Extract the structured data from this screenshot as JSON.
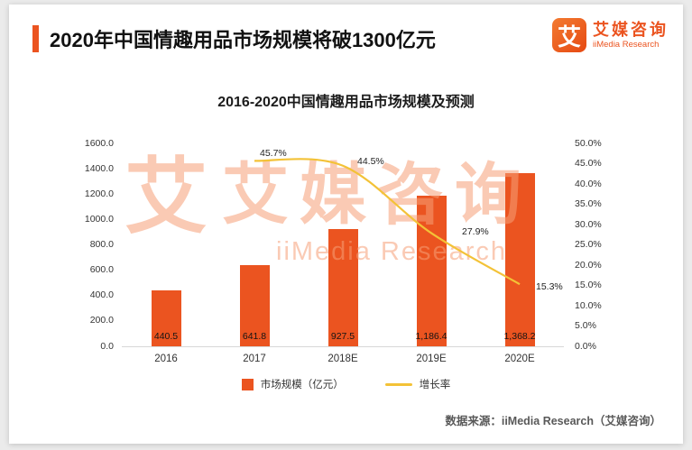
{
  "colors": {
    "accent": "#eb5420",
    "line": "#f3c237"
  },
  "header": {
    "title": "2020年中国情趣用品市场规模将破1300亿元",
    "logo": {
      "glyph": "艾",
      "brand_cn": "艾媒咨询",
      "brand_en": "iiMedia Research"
    }
  },
  "watermark": {
    "glyph": "艾",
    "brand_cn": "艾媒咨询",
    "brand_en": "iiMedia Research"
  },
  "chart_data": {
    "type": "bar+line",
    "title": "2016-2020中国情趣用品市场规模及预测",
    "categories": [
      "2016",
      "2017",
      "2018E",
      "2019E",
      "2020E"
    ],
    "series": [
      {
        "name": "市场规模（亿元）",
        "type": "bar",
        "axis": "left",
        "values": [
          440.5,
          641.8,
          927.5,
          1186.4,
          1368.2
        ],
        "labels": [
          "440.5",
          "641.8",
          "927.5",
          "1,186.4",
          "1,368.2"
        ]
      },
      {
        "name": "增长率",
        "type": "line",
        "axis": "right",
        "values": [
          null,
          45.7,
          44.5,
          27.9,
          15.3
        ],
        "labels": [
          "",
          "45.7%",
          "44.5%",
          "27.9%",
          "15.3%"
        ]
      }
    ],
    "left_axis": {
      "min": 0,
      "max": 1600,
      "step": 200,
      "ticks": [
        "1600.0",
        "1400.0",
        "1200.0",
        "1000.0",
        "800.0",
        "600.0",
        "400.0",
        "200.0",
        "0.0"
      ]
    },
    "right_axis": {
      "min": 0,
      "max": 50,
      "step": 5,
      "ticks": [
        "50.0%",
        "45.0%",
        "40.0%",
        "35.0%",
        "30.0%",
        "25.0%",
        "20.0%",
        "15.0%",
        "10.0%",
        "5.0%",
        "0.0%"
      ]
    },
    "legend": [
      {
        "label": "市场规模（亿元）",
        "marker": "bar"
      },
      {
        "label": "增长率",
        "marker": "line"
      }
    ],
    "grid": false,
    "legend_position": "bottom"
  },
  "footer": {
    "source": "数据来源：iiMedia Research（艾媒咨询）"
  }
}
